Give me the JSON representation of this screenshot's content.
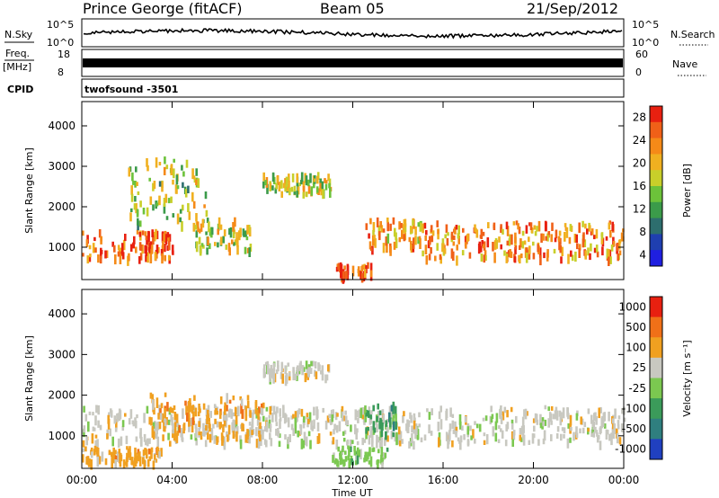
{
  "header": {
    "station": "Prince George (fitACF)",
    "beam": "Beam 05",
    "date": "21/Sep/2012"
  },
  "strip": {
    "nsky_label": "N.Sky",
    "nsearch_label": "N.Search",
    "noise_ticks": [
      "10^5",
      "10^0"
    ],
    "freq_label": "Freq.",
    "freq_unit": "[MHz]",
    "freq_ticks": [
      "18",
      "8"
    ],
    "nave_label": "Nave",
    "nave_ticks": [
      "60",
      "0"
    ],
    "cpid_label": "CPID",
    "cpid_value": "twofsound -3501"
  },
  "colors": {
    "noise_trace": "#000000",
    "frame": "#000000"
  },
  "chart_data": [
    {
      "type": "heatmap",
      "panel": "power",
      "xlabel": "",
      "ylabel": "Slant Range [km]",
      "y_ticks": [
        "1000",
        "2000",
        "3000",
        "4000"
      ],
      "ylim": [
        200,
        4600
      ],
      "colorbar_label": "Power [dB]",
      "colorbar_ticks": [
        "4",
        "8",
        "12",
        "16",
        "20",
        "24",
        "28"
      ],
      "colorbar_range": [
        0,
        31
      ],
      "colormap": [
        "#1f1fe0",
        "#1f3fb0",
        "#2d6e6e",
        "#3b9b4a",
        "#6cc23a",
        "#c8cf2a",
        "#f0b020",
        "#f58a18",
        "#f06018",
        "#e82010"
      ],
      "bands": [
        {
          "t0": 0.0,
          "t1": 4.0,
          "r0": 700,
          "r1": 1400,
          "level": 0.85
        },
        {
          "t0": 2.0,
          "t1": 5.5,
          "r0": 1500,
          "r1": 3200,
          "level": 0.5
        },
        {
          "t0": 5.0,
          "t1": 7.5,
          "r0": 900,
          "r1": 1700,
          "level": 0.55
        },
        {
          "t0": 8.0,
          "t1": 11.0,
          "r0": 2300,
          "r1": 2800,
          "level": 0.55
        },
        {
          "t0": 11.2,
          "t1": 12.8,
          "r0": 250,
          "r1": 600,
          "level": 0.9
        },
        {
          "t0": 12.5,
          "t1": 15.0,
          "r0": 900,
          "r1": 1700,
          "level": 0.7
        },
        {
          "t0": 15.0,
          "t1": 24.0,
          "r0": 700,
          "r1": 1600,
          "level": 0.75
        }
      ]
    },
    {
      "type": "heatmap",
      "panel": "velocity",
      "xlabel": "Time UT",
      "ylabel": "Slant Range [km]",
      "x_ticks": [
        "00:00",
        "04:00",
        "08:00",
        "12:00",
        "16:00",
        "20:00",
        "00:00"
      ],
      "xlim": [
        0,
        24
      ],
      "y_ticks": [
        "1000",
        "2000",
        "3000",
        "4000"
      ],
      "ylim": [
        200,
        4600
      ],
      "colorbar_label": "Velocity [m s⁻¹]",
      "colorbar_ticks": [
        "1000",
        "500",
        "100",
        "25",
        "-25",
        "-100",
        "-500",
        "-1000"
      ],
      "colorbar_colors": [
        "#2040c0",
        "#2f7f7f",
        "#3b9b5a",
        "#7bc850",
        "#c8c8c0",
        "#f0a020",
        "#f07018",
        "#e82010"
      ],
      "bands": [
        {
          "t0": 0.0,
          "t1": 24.0,
          "r0": 800,
          "r1": 1700,
          "color": 4
        },
        {
          "t0": 8.0,
          "t1": 11.0,
          "r0": 2400,
          "r1": 2800,
          "color": 4
        },
        {
          "t0": 3.0,
          "t1": 8.0,
          "r0": 900,
          "r1": 2000,
          "color": 5
        },
        {
          "t0": 0.0,
          "t1": 3.5,
          "r0": 300,
          "r1": 700,
          "color": 5
        },
        {
          "t0": 11.0,
          "t1": 13.5,
          "r0": 300,
          "r1": 700,
          "color": 3
        },
        {
          "t0": 12.5,
          "t1": 14.0,
          "r0": 1000,
          "r1": 1800,
          "color": 2
        }
      ]
    }
  ]
}
